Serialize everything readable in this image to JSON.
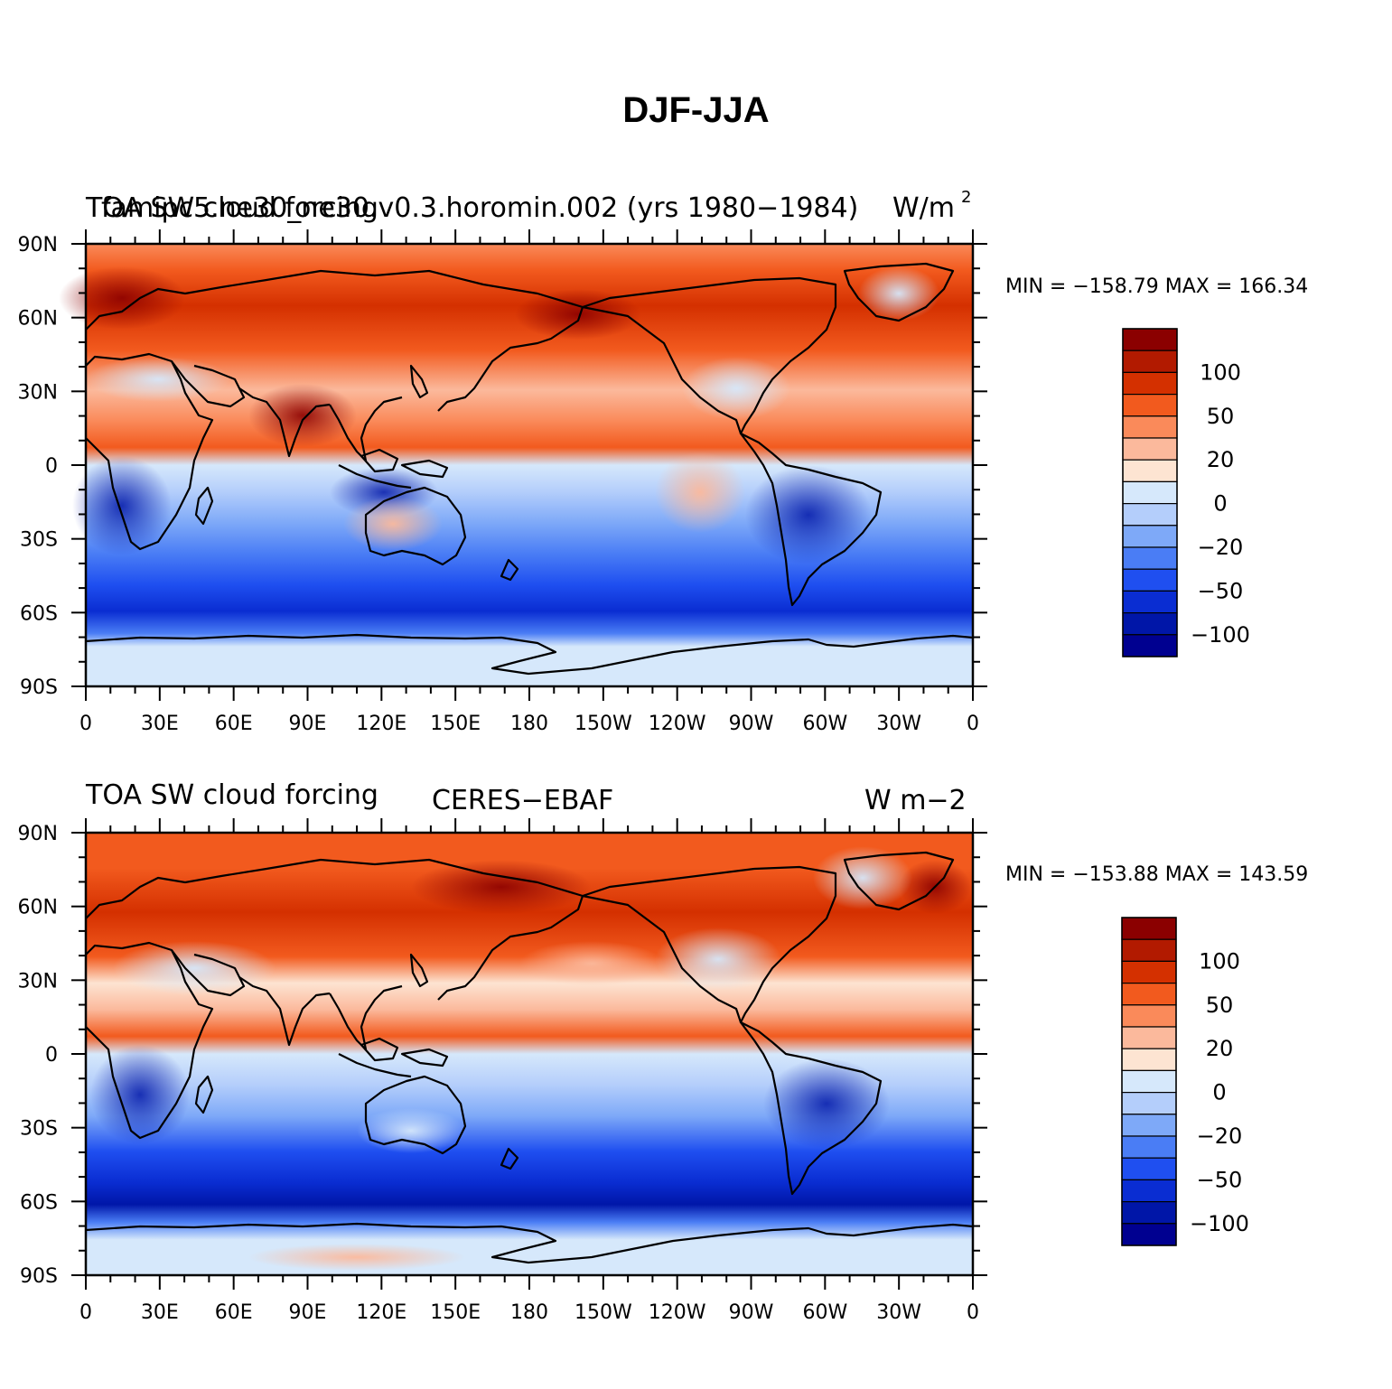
{
  "title": "DJF-JJA",
  "panels": [
    {
      "left_title": "TOA SW cloud forcing",
      "center_title": "famipc5.ne30_ne30.v0.3.horomin.002 (yrs 1980−1984)",
      "units": "W/m",
      "units_sup": "2",
      "min_max": "MIN = −158.79  MAX = 166.34"
    },
    {
      "left_title": "TOA SW cloud forcing",
      "center_title": "CERES−EBAF",
      "units": "W m−2",
      "units_sup": "",
      "min_max": "MIN = −153.88  MAX = 143.59"
    }
  ],
  "lat_labels": [
    "90N",
    "60N",
    "30N",
    "0",
    "30S",
    "60S",
    "90S"
  ],
  "lon_labels": [
    "0",
    "30E",
    "60E",
    "90E",
    "120E",
    "150E",
    "180",
    "150W",
    "120W",
    "90W",
    "60W",
    "30W",
    "0"
  ],
  "colorbar": {
    "colors": [
      "#8b0000",
      "#b21a00",
      "#d43000",
      "#f25a1e",
      "#fa8a5a",
      "#fbb99c",
      "#fde4d2",
      "#d6e8fb",
      "#b4cefb",
      "#7ea9f8",
      "#4a7df5",
      "#1f4ff0",
      "#0a2dd2",
      "#0016a8",
      "#000090"
    ],
    "labels": [
      "100",
      "50",
      "20",
      "0",
      "−20",
      "−50",
      "−100"
    ]
  },
  "chart_data": [
    {
      "type": "heatmap",
      "title": "famipc5.ne30_ne30.v0.3.horomin.002 (yrs 1980−1984)",
      "subtitle": "TOA SW cloud forcing",
      "units": "W/m2",
      "levels": [
        -150,
        -125,
        -100,
        -75,
        -50,
        -35,
        -20,
        -10,
        0,
        10,
        20,
        35,
        50,
        75,
        100,
        125,
        150
      ],
      "zonal_bands": [
        {
          "lat": 80,
          "value": 60
        },
        {
          "lat": 65,
          "value": 90
        },
        {
          "lat": 50,
          "value": 60
        },
        {
          "lat": 35,
          "value": 35
        },
        {
          "lat": 20,
          "value": 30
        },
        {
          "lat": 8,
          "value": 45
        },
        {
          "lat": -5,
          "value": -20
        },
        {
          "lat": -20,
          "value": -40
        },
        {
          "lat": -35,
          "value": -55
        },
        {
          "lat": -50,
          "value": -100
        },
        {
          "lat": -62,
          "value": -110
        },
        {
          "lat": -75,
          "value": -10
        },
        {
          "lat": -85,
          "value": -5
        }
      ],
      "min": -158.79,
      "max": 166.34,
      "xlim": [
        0,
        360
      ],
      "ylim": [
        -90,
        90
      ]
    },
    {
      "type": "heatmap",
      "title": "CERES−EBAF",
      "subtitle": "TOA SW cloud forcing",
      "units": "W m−2",
      "levels": [
        -150,
        -125,
        -100,
        -75,
        -50,
        -35,
        -20,
        -10,
        0,
        10,
        20,
        35,
        50,
        75,
        100,
        125,
        150
      ],
      "zonal_bands": [
        {
          "lat": 80,
          "value": 55
        },
        {
          "lat": 65,
          "value": 85
        },
        {
          "lat": 50,
          "value": 75
        },
        {
          "lat": 35,
          "value": 20
        },
        {
          "lat": 20,
          "value": 10
        },
        {
          "lat": 8,
          "value": 40
        },
        {
          "lat": -5,
          "value": -15
        },
        {
          "lat": -20,
          "value": -30
        },
        {
          "lat": -35,
          "value": -60
        },
        {
          "lat": -50,
          "value": -90
        },
        {
          "lat": -62,
          "value": -130
        },
        {
          "lat": -75,
          "value": -15
        },
        {
          "lat": -85,
          "value": 5
        }
      ],
      "min": -153.88,
      "max": 143.59,
      "xlim": [
        0,
        360
      ],
      "ylim": [
        -90,
        90
      ]
    }
  ]
}
